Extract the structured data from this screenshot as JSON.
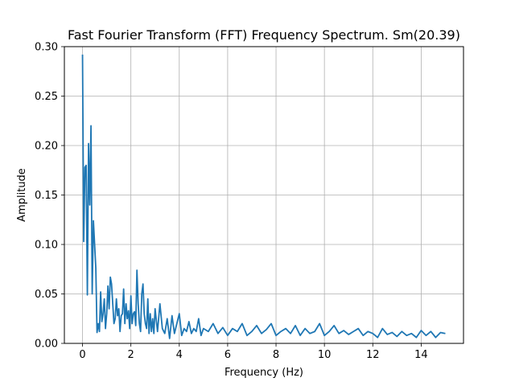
{
  "chart_data": {
    "type": "line",
    "title": "Fast Fourier Transform (FFT) Frequency Spectrum. Sm(20.39)",
    "xlabel": "Frequency (Hz)",
    "ylabel": "Amplitude",
    "xlim": [
      -0.75,
      15.75
    ],
    "ylim": [
      0.0,
      0.3
    ],
    "x_ticks": [
      0,
      2,
      4,
      6,
      8,
      10,
      12,
      14
    ],
    "x_tick_labels": [
      "0",
      "2",
      "4",
      "6",
      "8",
      "10",
      "12",
      "14"
    ],
    "y_ticks": [
      0.0,
      0.05,
      0.1,
      0.15,
      0.2,
      0.25,
      0.3
    ],
    "y_tick_labels": [
      "0.00",
      "0.05",
      "0.10",
      "0.15",
      "0.20",
      "0.25",
      "0.30"
    ],
    "grid": true,
    "series": [
      {
        "color": "#1f77b4",
        "x": [
          0.0,
          0.05,
          0.1,
          0.15,
          0.2,
          0.25,
          0.3,
          0.35,
          0.4,
          0.45,
          0.5,
          0.55,
          0.6,
          0.65,
          0.7,
          0.75,
          0.8,
          0.85,
          0.9,
          0.95,
          1.0,
          1.05,
          1.1,
          1.15,
          1.2,
          1.25,
          1.3,
          1.35,
          1.4,
          1.45,
          1.5,
          1.55,
          1.6,
          1.65,
          1.7,
          1.75,
          1.8,
          1.85,
          1.9,
          1.95,
          2.0,
          2.05,
          2.1,
          2.15,
          2.2,
          2.25,
          2.3,
          2.35,
          2.4,
          2.45,
          2.5,
          2.55,
          2.6,
          2.65,
          2.7,
          2.75,
          2.8,
          2.85,
          2.9,
          2.95,
          3.0,
          3.1,
          3.2,
          3.3,
          3.4,
          3.5,
          3.6,
          3.7,
          3.8,
          3.9,
          4.0,
          4.1,
          4.2,
          4.3,
          4.4,
          4.5,
          4.6,
          4.7,
          4.8,
          4.9,
          5.0,
          5.2,
          5.4,
          5.6,
          5.8,
          6.0,
          6.2,
          6.4,
          6.6,
          6.8,
          7.0,
          7.2,
          7.4,
          7.6,
          7.8,
          8.0,
          8.2,
          8.4,
          8.6,
          8.8,
          9.0,
          9.2,
          9.4,
          9.6,
          9.8,
          10.0,
          10.2,
          10.4,
          10.6,
          10.8,
          11.0,
          11.2,
          11.4,
          11.6,
          11.8,
          12.0,
          12.2,
          12.4,
          12.6,
          12.8,
          13.0,
          13.2,
          13.4,
          13.6,
          13.8,
          14.0,
          14.2,
          14.4,
          14.6,
          14.8,
          15.0
        ],
        "y": [
          0.292,
          0.103,
          0.178,
          0.18,
          0.049,
          0.202,
          0.14,
          0.22,
          0.05,
          0.124,
          0.1,
          0.076,
          0.011,
          0.02,
          0.012,
          0.052,
          0.022,
          0.03,
          0.045,
          0.015,
          0.03,
          0.058,
          0.035,
          0.067,
          0.06,
          0.04,
          0.02,
          0.025,
          0.045,
          0.028,
          0.035,
          0.012,
          0.028,
          0.03,
          0.055,
          0.02,
          0.04,
          0.025,
          0.033,
          0.015,
          0.048,
          0.02,
          0.03,
          0.032,
          0.018,
          0.074,
          0.04,
          0.02,
          0.012,
          0.05,
          0.06,
          0.03,
          0.02,
          0.015,
          0.045,
          0.01,
          0.03,
          0.012,
          0.025,
          0.01,
          0.035,
          0.012,
          0.04,
          0.015,
          0.01,
          0.025,
          0.005,
          0.028,
          0.01,
          0.02,
          0.03,
          0.008,
          0.015,
          0.012,
          0.022,
          0.01,
          0.015,
          0.012,
          0.025,
          0.008,
          0.015,
          0.012,
          0.02,
          0.01,
          0.016,
          0.008,
          0.015,
          0.012,
          0.02,
          0.008,
          0.012,
          0.018,
          0.01,
          0.014,
          0.02,
          0.008,
          0.012,
          0.015,
          0.01,
          0.018,
          0.008,
          0.015,
          0.01,
          0.012,
          0.02,
          0.008,
          0.012,
          0.018,
          0.01,
          0.013,
          0.009,
          0.012,
          0.015,
          0.008,
          0.012,
          0.01,
          0.006,
          0.015,
          0.009,
          0.011,
          0.007,
          0.012,
          0.008,
          0.01,
          0.006,
          0.013,
          0.008,
          0.012,
          0.006,
          0.011,
          0.01
        ]
      }
    ]
  }
}
